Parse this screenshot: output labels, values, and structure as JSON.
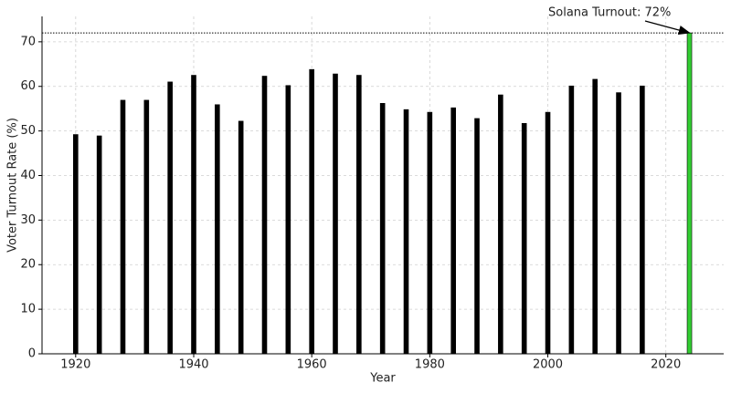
{
  "chart_data": {
    "type": "bar",
    "x_label": "Year",
    "y_label": "Voter Turnout Rate (%)",
    "x": [
      1920,
      1924,
      1928,
      1932,
      1936,
      1940,
      1944,
      1948,
      1952,
      1956,
      1960,
      1964,
      1968,
      1972,
      1976,
      1980,
      1984,
      1988,
      1992,
      1996,
      2000,
      2004,
      2008,
      2012,
      2016,
      2024
    ],
    "values": [
      49.2,
      48.9,
      56.9,
      56.9,
      61.0,
      62.5,
      55.9,
      52.2,
      62.3,
      60.2,
      63.8,
      62.8,
      62.5,
      56.2,
      54.8,
      54.2,
      55.2,
      52.8,
      58.1,
      51.7,
      54.2,
      60.1,
      61.6,
      58.6,
      60.1,
      72
    ],
    "colors": [
      "#000000",
      "#000000",
      "#000000",
      "#000000",
      "#000000",
      "#000000",
      "#000000",
      "#000000",
      "#000000",
      "#000000",
      "#000000",
      "#000000",
      "#000000",
      "#000000",
      "#000000",
      "#000000",
      "#000000",
      "#000000",
      "#000000",
      "#000000",
      "#000000",
      "#000000",
      "#000000",
      "#000000",
      "#000000",
      "#32cd32"
    ],
    "xlim": [
      1914.3,
      2029.8
    ],
    "ylim": [
      0,
      75.7
    ],
    "xticks": [
      1920,
      1940,
      1960,
      1980,
      2000,
      2020
    ],
    "yticks": [
      0,
      10,
      20,
      30,
      40,
      50,
      60,
      70
    ],
    "grid": true,
    "reference_line": 72,
    "annotation": {
      "text": "Solana Turnout: 72%",
      "x": 2024,
      "y": 72
    }
  }
}
